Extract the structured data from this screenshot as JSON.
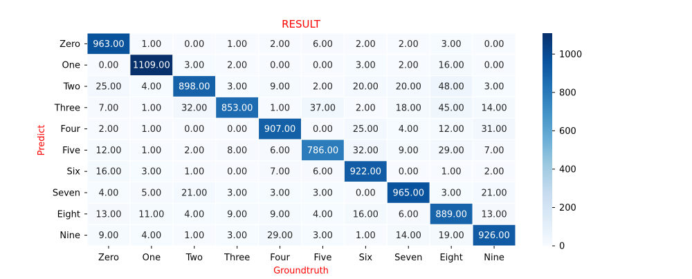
{
  "chart_data": {
    "type": "heatmap",
    "title": "RESULT",
    "xlabel": "Groundtruth",
    "ylabel": "Predict",
    "title_color": "#ff0000",
    "label_color": "#ff0000",
    "colormap": "Blues",
    "x_categories": [
      "Zero",
      "One",
      "Two",
      "Three",
      "Four",
      "Five",
      "Six",
      "Seven",
      "Eight",
      "Nine"
    ],
    "y_categories": [
      "Zero",
      "One",
      "Two",
      "Three",
      "Four",
      "Five",
      "Six",
      "Seven",
      "Eight",
      "Nine"
    ],
    "values": [
      [
        963,
        1,
        0,
        1,
        2,
        6,
        2,
        2,
        3,
        0
      ],
      [
        0,
        1109,
        3,
        2,
        0,
        0,
        3,
        2,
        16,
        0
      ],
      [
        25,
        4,
        898,
        3,
        9,
        2,
        20,
        20,
        48,
        3
      ],
      [
        7,
        1,
        32,
        853,
        1,
        37,
        2,
        18,
        45,
        14
      ],
      [
        2,
        1,
        0,
        0,
        907,
        0,
        25,
        4,
        12,
        31
      ],
      [
        12,
        1,
        2,
        8,
        6,
        786,
        32,
        9,
        29,
        7
      ],
      [
        16,
        3,
        1,
        0,
        7,
        6,
        922,
        0,
        1,
        2
      ],
      [
        4,
        5,
        21,
        3,
        3,
        3,
        0,
        965,
        3,
        21
      ],
      [
        13,
        11,
        4,
        9,
        9,
        4,
        16,
        6,
        889,
        13
      ],
      [
        9,
        4,
        1,
        3,
        29,
        3,
        1,
        14,
        19,
        926
      ]
    ],
    "value_format_decimals": 2,
    "color_range": [
      0,
      1109
    ],
    "colorbar_ticks": [
      0,
      200,
      400,
      600,
      800,
      1000
    ],
    "grid": false,
    "legend": "colorbar-right"
  }
}
